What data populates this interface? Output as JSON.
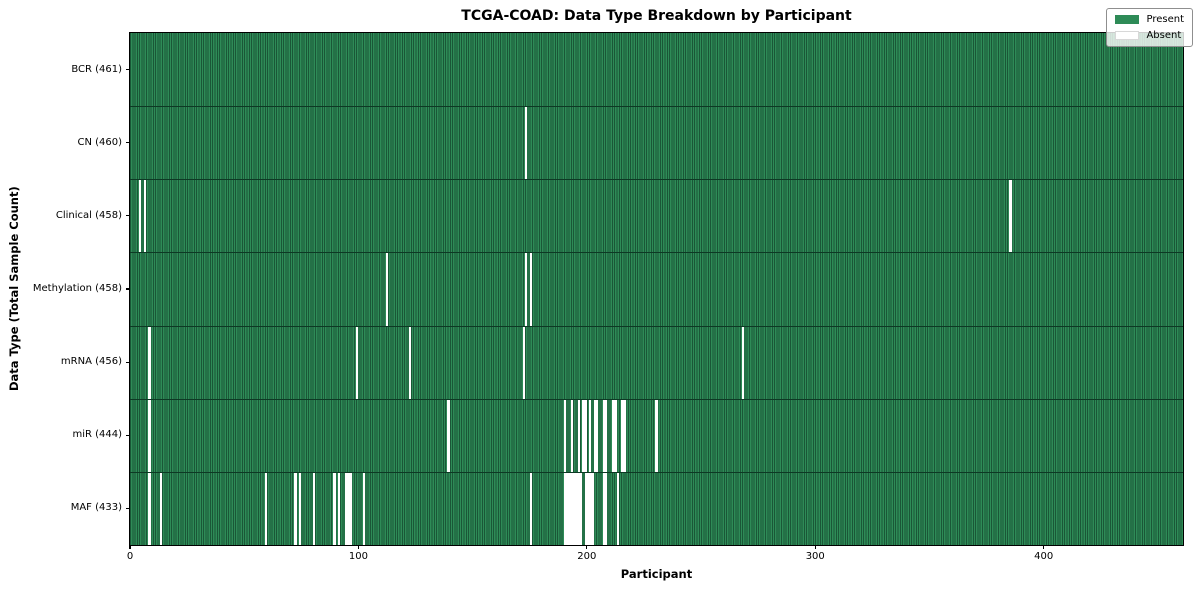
{
  "figure": {
    "title": "TCGA-COAD: Data Type Breakdown by Participant",
    "xlabel": "Participant",
    "ylabel": "Data Type (Total Sample Count)"
  },
  "legend": {
    "present_label": "Present",
    "absent_label": "Absent"
  },
  "colors": {
    "present": "#2e8b57",
    "present_bar_edge": "#1a5737",
    "row_divider": "#0d3924",
    "absent": "#ffffff",
    "spine": "#000000"
  },
  "chart_data": {
    "type": "heatmap",
    "title": "TCGA-COAD: Data Type Breakdown by Participant",
    "xlabel": "Participant",
    "ylabel": "Data Type (Total Sample Count)",
    "legend_entries": [
      "Present",
      "Absent"
    ],
    "legend_position": "upper right",
    "grid": false,
    "n_participants": 461,
    "xlim": [
      0,
      461
    ],
    "x_ticks": [
      0,
      100,
      200,
      300,
      400
    ],
    "rows": [
      {
        "data_type": "BCR",
        "label": "BCR (461)",
        "total": 461,
        "absent_participants": []
      },
      {
        "data_type": "CN",
        "label": "CN (460)",
        "total": 460,
        "absent_participants": [
          173
        ]
      },
      {
        "data_type": "Clinical",
        "label": "Clinical (458)",
        "total": 458,
        "absent_participants": [
          4,
          6,
          385
        ]
      },
      {
        "data_type": "Methylation",
        "label": "Methylation (458)",
        "total": 458,
        "absent_participants": [
          112,
          173,
          175
        ]
      },
      {
        "data_type": "mRNA",
        "label": "mRNA (456)",
        "total": 456,
        "absent_participants": [
          8,
          99,
          122,
          172,
          268
        ]
      },
      {
        "data_type": "miR",
        "label": "miR (444)",
        "total": 444,
        "absent_participants": [
          8,
          139,
          190,
          193,
          196,
          198,
          199,
          201,
          203,
          204,
          207,
          208,
          211,
          212,
          215,
          216,
          230
        ]
      },
      {
        "data_type": "MAF",
        "label": "MAF (433)",
        "total": 433,
        "absent_participants": [
          8,
          13,
          59,
          72,
          74,
          80,
          89,
          91,
          94,
          95,
          96,
          102,
          175,
          190,
          191,
          192,
          193,
          194,
          195,
          196,
          197,
          199,
          200,
          201,
          202,
          207,
          208,
          213
        ]
      }
    ]
  }
}
